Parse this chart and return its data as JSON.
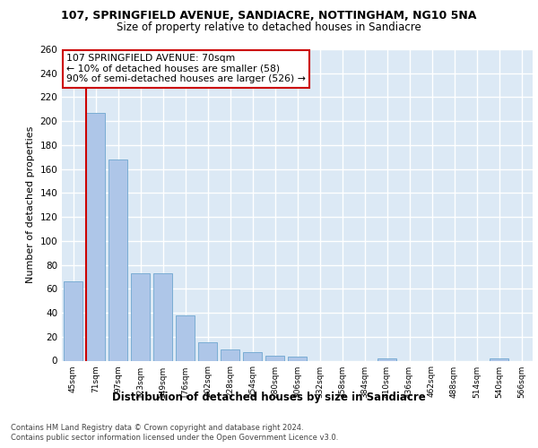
{
  "title_line1": "107, SPRINGFIELD AVENUE, SANDIACRE, NOTTINGHAM, NG10 5NA",
  "title_line2": "Size of property relative to detached houses in Sandiacre",
  "xlabel": "Distribution of detached houses by size in Sandiacre",
  "ylabel": "Number of detached properties",
  "categories": [
    "45sqm",
    "71sqm",
    "97sqm",
    "123sqm",
    "149sqm",
    "176sqm",
    "202sqm",
    "228sqm",
    "254sqm",
    "280sqm",
    "306sqm",
    "332sqm",
    "358sqm",
    "384sqm",
    "410sqm",
    "436sqm",
    "462sqm",
    "488sqm",
    "514sqm",
    "540sqm",
    "566sqm"
  ],
  "values": [
    66,
    207,
    168,
    73,
    73,
    38,
    15,
    9,
    7,
    4,
    3,
    0,
    0,
    0,
    2,
    0,
    0,
    0,
    0,
    2,
    0
  ],
  "bar_color": "#aec6e8",
  "bar_edge_color": "#7aadd4",
  "bg_color": "#dce9f5",
  "grid_color": "#ffffff",
  "vline_color": "#cc0000",
  "annotation_text": "107 SPRINGFIELD AVENUE: 70sqm\n← 10% of detached houses are smaller (58)\n90% of semi-detached houses are larger (526) →",
  "annotation_box_color": "#ffffff",
  "annotation_box_edge": "#cc0000",
  "footer_line1": "Contains HM Land Registry data © Crown copyright and database right 2024.",
  "footer_line2": "Contains public sector information licensed under the Open Government Licence v3.0.",
  "ylim": [
    0,
    260
  ],
  "yticks": [
    0,
    20,
    40,
    60,
    80,
    100,
    120,
    140,
    160,
    180,
    200,
    220,
    240,
    260
  ]
}
